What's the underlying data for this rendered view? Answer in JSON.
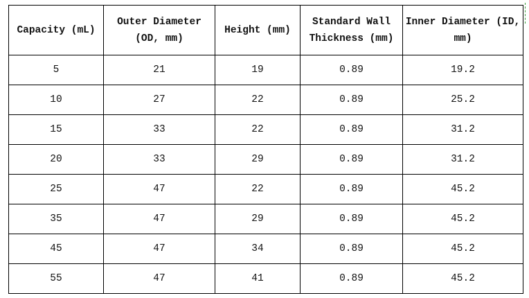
{
  "table": {
    "header": [
      "Capacity (mL)",
      "Outer Diameter (OD, mm)",
      "Height (mm)",
      "Standard Wall Thickness (mm)",
      "Inner Diameter (ID, mm)"
    ],
    "rows": [
      [
        "5",
        "21",
        "19",
        "0.89",
        "19.2"
      ],
      [
        "10",
        "27",
        "22",
        "0.89",
        "25.2"
      ],
      [
        "15",
        "33",
        "22",
        "0.89",
        "31.2"
      ],
      [
        "20",
        "33",
        "29",
        "0.89",
        "31.2"
      ],
      [
        "25",
        "47",
        "22",
        "0.89",
        "45.2"
      ],
      [
        "35",
        "47",
        "29",
        "0.89",
        "45.2"
      ],
      [
        "45",
        "47",
        "34",
        "0.89",
        "45.2"
      ],
      [
        "55",
        "47",
        "41",
        "0.89",
        "45.2"
      ]
    ]
  }
}
